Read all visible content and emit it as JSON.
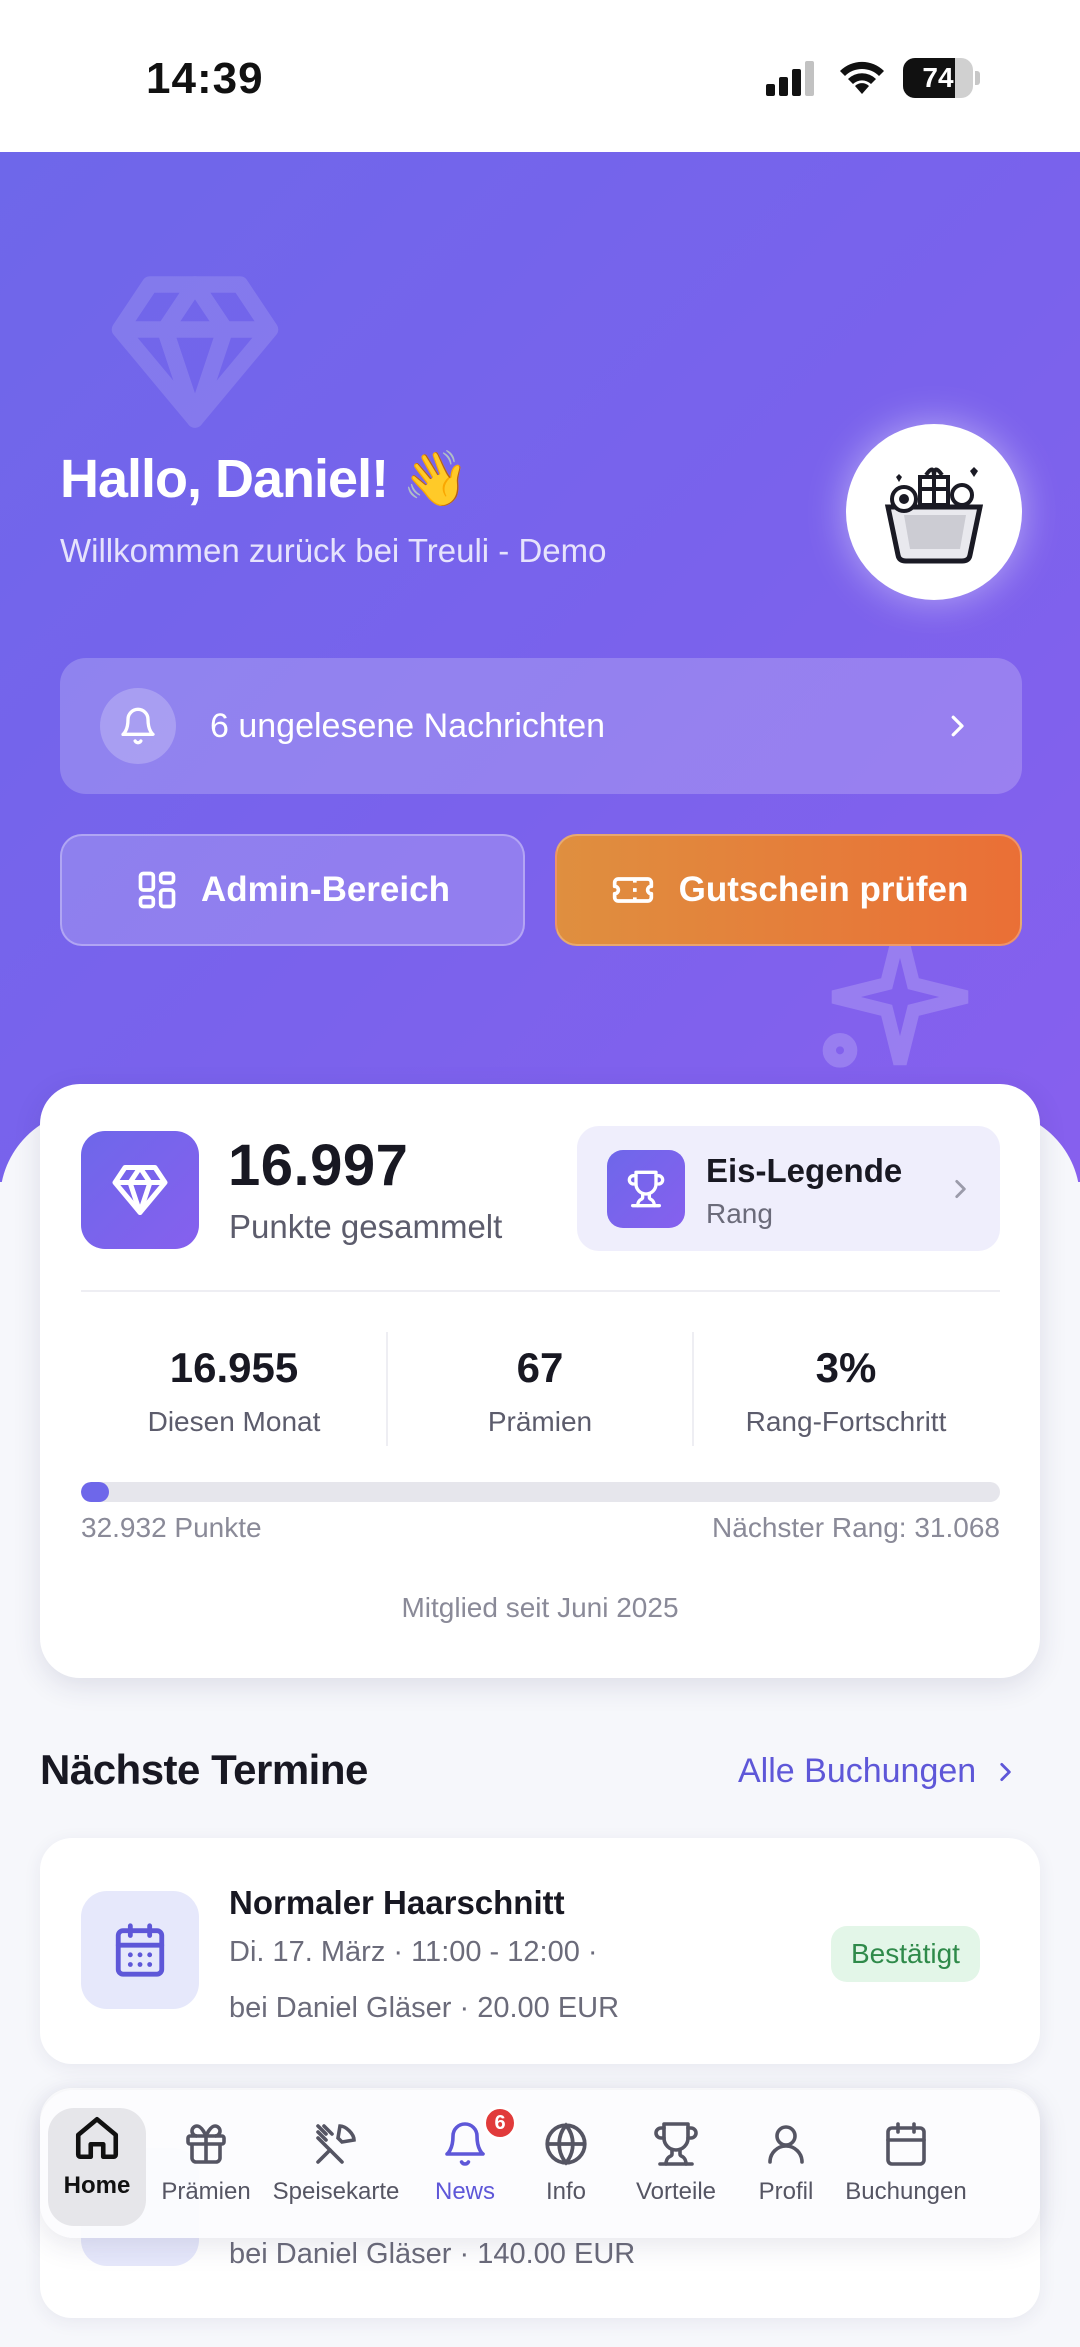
{
  "status_bar": {
    "time": "14:39",
    "battery": "74",
    "battery_level": 0.74
  },
  "hero": {
    "greeting": "Hallo, Daniel! 👋",
    "subtitle": "Willkommen zurück bei Treuli - Demo",
    "notifications_label": "6 ungelesene Nachrichten",
    "admin_button": "Admin-Bereich",
    "voucher_button": "Gutschein prüfen"
  },
  "stats": {
    "points": "16.997",
    "points_label": "Punkte gesammelt",
    "rank_name": "Eis-Legende",
    "rank_label": "Rang",
    "this_month_value": "16.955",
    "this_month_label": "Diesen Monat",
    "rewards_value": "67",
    "rewards_label": "Prämien",
    "progress_value": "3%",
    "progress_label": "Rang-Fortschritt",
    "progress_fraction": 0.03,
    "progress_left": "32.932 Punkte",
    "progress_right": "Nächster Rang: 31.068",
    "member_since": "Mitglied seit Juni 2025"
  },
  "appointments": {
    "title": "Nächste Termine",
    "link": "Alle Buchungen",
    "items": [
      {
        "title": "Normaler Haarschnitt",
        "line1": "Di. 17. März  ·  11:00 - 12:00  ·",
        "line2": "bei Daniel Gläser  ·  20.00 EUR",
        "status": "Bestätigt"
      },
      {
        "line2": "bei Daniel Gläser  ·  140.00 EUR"
      }
    ]
  },
  "nav": {
    "items": [
      {
        "label": "Home",
        "icon": "home-icon"
      },
      {
        "label": "Prämien",
        "icon": "gift-icon"
      },
      {
        "label": "Speisekarte",
        "icon": "utensils-icon"
      },
      {
        "label": "News",
        "icon": "bell-icon",
        "badge": "6"
      },
      {
        "label": "Info",
        "icon": "globe-icon"
      },
      {
        "label": "Vorteile",
        "icon": "trophy-icon"
      },
      {
        "label": "Profil",
        "icon": "user-icon"
      },
      {
        "label": "Buchungen",
        "icon": "calendar-icon"
      }
    ]
  },
  "colors": {
    "accent": "#6e67ea",
    "voucher": "#ea6f36",
    "success": "#2f8a4a"
  }
}
